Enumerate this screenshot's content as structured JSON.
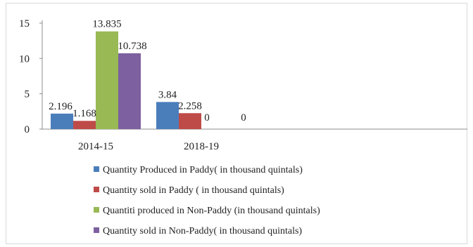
{
  "chart_data": {
    "type": "bar",
    "categories": [
      "2014-15",
      "2018-19"
    ],
    "series": [
      {
        "name": "Quantity Produced in Paddy( in thousand quintals)",
        "values": [
          2.196,
          3.84
        ],
        "color": "#4a7ebb"
      },
      {
        "name": "Quantity sold in Paddy ( in thousand quintals)",
        "values": [
          1.168,
          2.258
        ],
        "color": "#be4b48"
      },
      {
        "name": "Quantiti produced in Non-Paddy (in thousand quintals)",
        "values": [
          13.835,
          0
        ],
        "color": "#98b954"
      },
      {
        "name": "Quantity sold in Non-Paddy( in thousand quintals)",
        "values": [
          10.738,
          0
        ],
        "color": "#7d60a0"
      }
    ],
    "data_labels": [
      [
        "2.196",
        "3.84"
      ],
      [
        "1.168",
        "2.258"
      ],
      [
        "13.835",
        "0"
      ],
      [
        "10.738",
        "0"
      ]
    ],
    "y_ticks": [
      0,
      5,
      10,
      15
    ],
    "ylim": [
      0,
      15
    ],
    "grid": false,
    "legend_position": "bottom",
    "title": "",
    "xlabel": "",
    "ylabel": ""
  }
}
